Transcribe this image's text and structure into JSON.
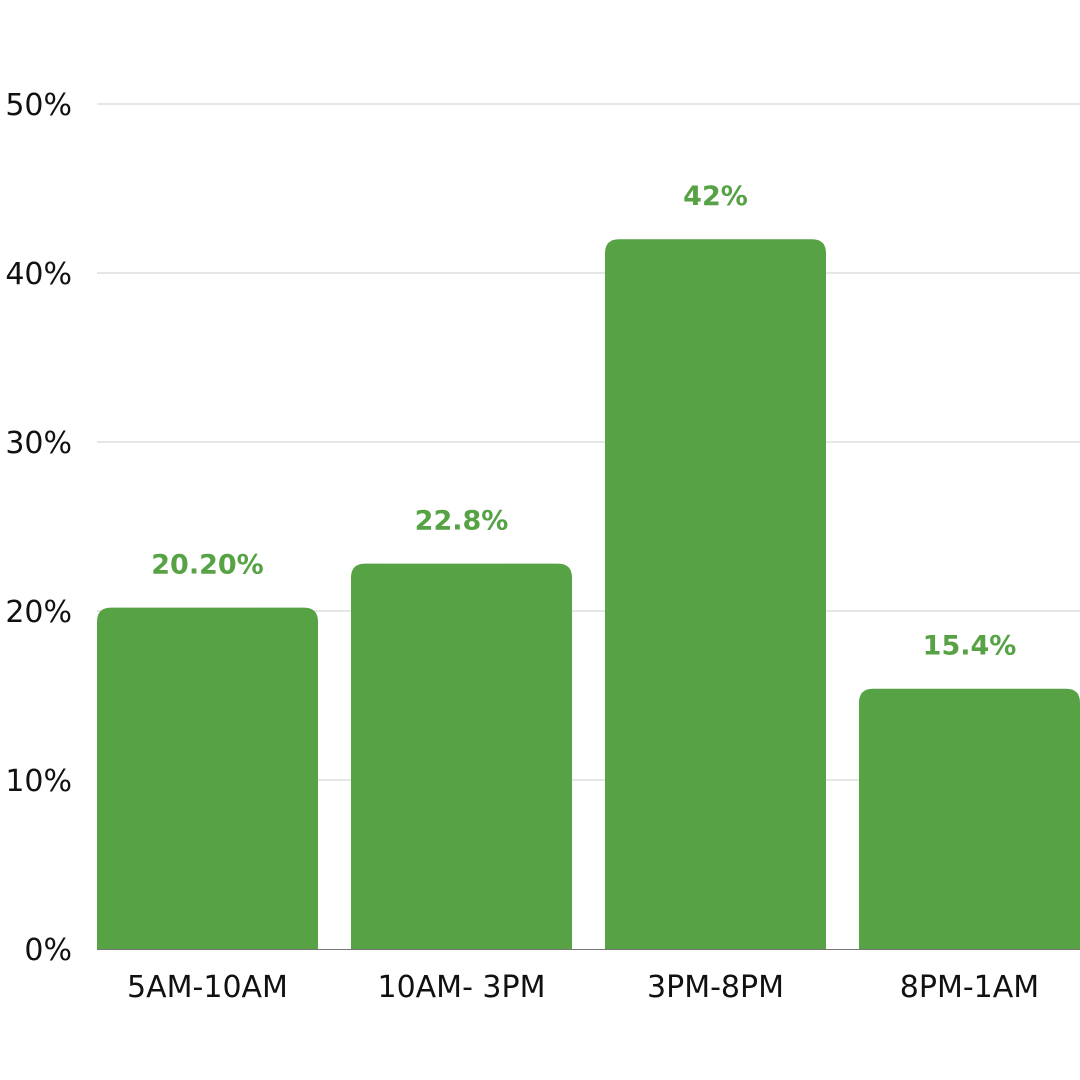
{
  "chart_data": {
    "type": "bar",
    "categories": [
      "5AM-10AM",
      "10AM- 3PM",
      "3PM-8PM",
      "8PM-1AM"
    ],
    "values": [
      20.2,
      22.8,
      42,
      15.4
    ],
    "data_labels": [
      "20.20%",
      "22.8%",
      "42%",
      "15.4%"
    ],
    "y_ticks": [
      {
        "value": 0,
        "label": "0%"
      },
      {
        "value": 10,
        "label": "10%"
      },
      {
        "value": 20,
        "label": "20%"
      },
      {
        "value": 30,
        "label": "30%"
      },
      {
        "value": 40,
        "label": "40%"
      },
      {
        "value": 50,
        "label": "50%"
      }
    ],
    "ylim": [
      0,
      50
    ],
    "grid": true,
    "legend": "none",
    "title": "",
    "xlabel": "",
    "ylabel": "",
    "colors": {
      "bar": "#56a244",
      "data_label": "#56a244",
      "grid": "#cccccc"
    }
  }
}
